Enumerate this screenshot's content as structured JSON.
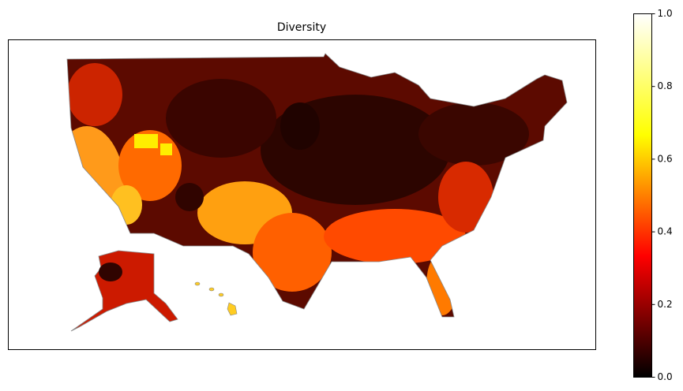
{
  "chart_data": {
    "type": "choropleth",
    "title": "Diversity",
    "colormap": [
      "#000000",
      "#ff0000",
      "#ffff00",
      "#ffffff"
    ],
    "clim": [
      0,
      1
    ],
    "cticks": [
      {
        "value": 0,
        "label": "0.0"
      },
      {
        "value": 0.2,
        "label": "0.2"
      },
      {
        "value": 0.4,
        "label": "0.4"
      },
      {
        "value": 0.6,
        "label": "0.6"
      },
      {
        "value": 0.8,
        "label": "0.8"
      },
      {
        "value": 1,
        "label": "1.0"
      }
    ]
  }
}
